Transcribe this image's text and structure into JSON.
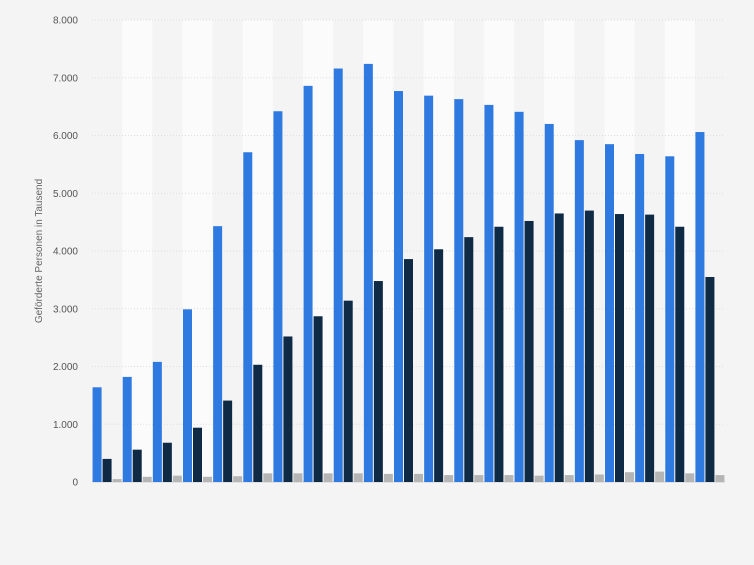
{
  "chart_data": {
    "type": "bar",
    "title": "",
    "xlabel": "",
    "ylabel": "Geförderte Personen in Tausend",
    "ylim": [
      0,
      8000
    ],
    "yticks": [
      0,
      1000,
      2000,
      3000,
      4000,
      5000,
      6000,
      7000,
      8000
    ],
    "ytick_labels": [
      "0",
      "1.000",
      "2.000",
      "3.000",
      "4.000",
      "5.000",
      "6.000",
      "7.000",
      "8.000"
    ],
    "grid": true,
    "legend": "none",
    "categories": [
      "",
      "",
      "",
      "",
      "",
      "",
      "",
      "",
      "",
      "",
      "",
      "",
      "",
      "",
      "",
      "",
      "",
      "",
      "",
      "",
      ""
    ],
    "series": [
      {
        "color": "#2f7ae0",
        "values": [
          1640,
          1820,
          2080,
          2990,
          4430,
          5710,
          6420,
          6860,
          7160,
          7240,
          6770,
          6690,
          6630,
          6530,
          6410,
          6200,
          5920,
          5850,
          5680,
          5640,
          6060
        ]
      },
      {
        "color": "#0f2a45",
        "values": [
          400,
          560,
          680,
          940,
          1410,
          2030,
          2520,
          2870,
          3140,
          3480,
          3860,
          4030,
          4240,
          4420,
          4520,
          4650,
          4700,
          4640,
          4630,
          4420,
          3550
        ]
      },
      {
        "color": "#b5b5b5",
        "values": [
          50,
          90,
          110,
          90,
          100,
          150,
          150,
          150,
          150,
          140,
          140,
          120,
          120,
          120,
          110,
          120,
          130,
          170,
          180,
          150,
          120
        ]
      }
    ]
  }
}
